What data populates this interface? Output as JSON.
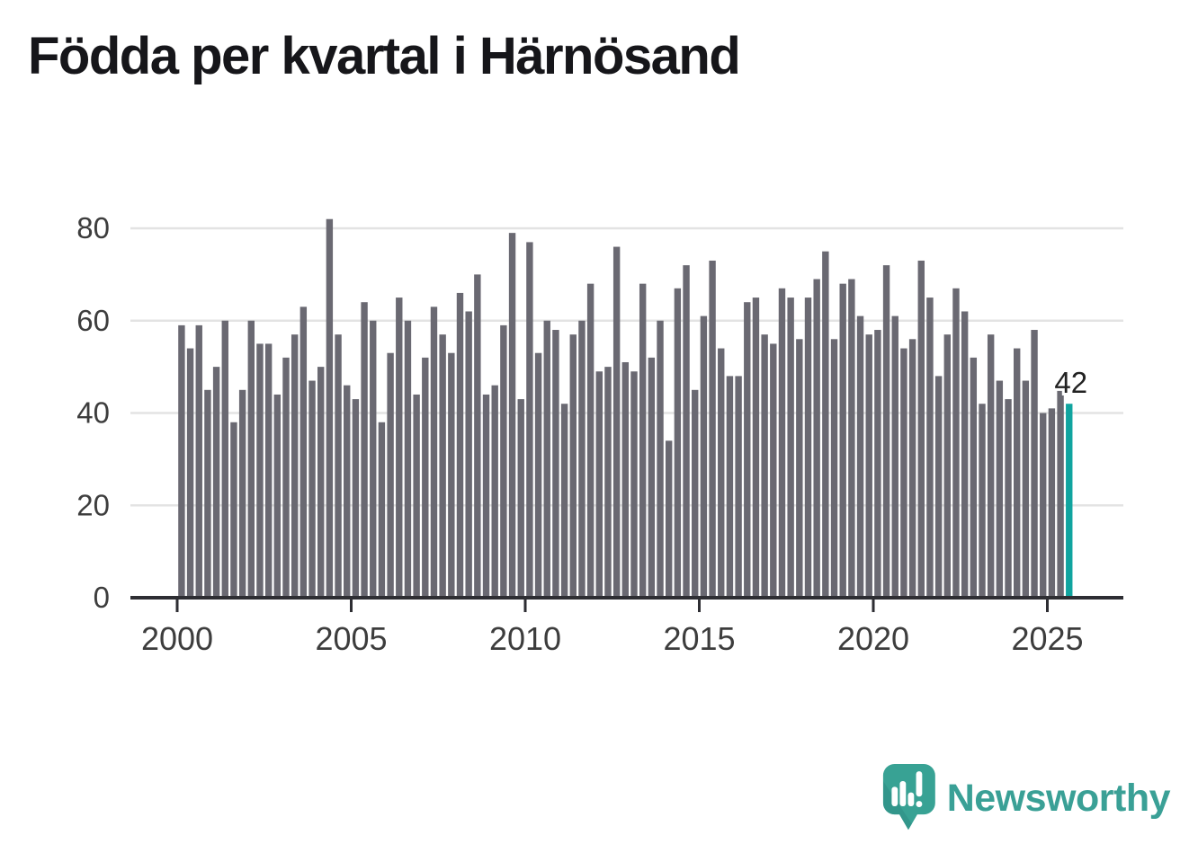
{
  "title": "Födda per kvartal i Härnösand",
  "annotation": {
    "last_value_label": "42"
  },
  "branding": {
    "name": "Newsworthy",
    "logo_icon": "speech-bubble-bar-chart-exclamation"
  },
  "colors": {
    "bar": "#6a6972",
    "highlight": "#10a49f",
    "gridline": "#e3e3e3",
    "axis": "#2e2e33",
    "tick_label": "#3d3d3d",
    "value_label": "#222222",
    "title": "#16161a",
    "brand": "#3aa096",
    "brand_shadow": "#2e8c84",
    "background": "#ffffff"
  },
  "chart_data": {
    "type": "bar",
    "title": "Födda per kvartal i Härnösand",
    "x_unit": "quarter",
    "start": "2000-Q1",
    "end": "2025-Q3",
    "values": [
      59,
      54,
      59,
      45,
      50,
      60,
      38,
      45,
      60,
      55,
      55,
      44,
      52,
      57,
      63,
      47,
      50,
      82,
      57,
      46,
      43,
      64,
      60,
      38,
      53,
      65,
      60,
      44,
      52,
      63,
      57,
      53,
      66,
      62,
      70,
      44,
      46,
      59,
      79,
      43,
      77,
      53,
      60,
      58,
      42,
      57,
      60,
      68,
      49,
      50,
      76,
      51,
      49,
      68,
      52,
      60,
      34,
      67,
      72,
      45,
      61,
      73,
      54,
      48,
      48,
      64,
      65,
      57,
      55,
      67,
      65,
      56,
      65,
      69,
      75,
      56,
      68,
      69,
      61,
      57,
      58,
      72,
      61,
      54,
      56,
      73,
      65,
      48,
      57,
      67,
      62,
      52,
      42,
      57,
      47,
      43,
      54,
      47,
      58,
      40,
      41,
      45,
      42
    ],
    "highlight_index": 102,
    "highlight_label": "42",
    "ylim": [
      0,
      86
    ],
    "yticks": [
      0,
      20,
      40,
      60,
      80
    ],
    "xticks": [
      2000,
      2005,
      2010,
      2015,
      2020,
      2025
    ],
    "grid": "horizontal",
    "legend": "none"
  }
}
